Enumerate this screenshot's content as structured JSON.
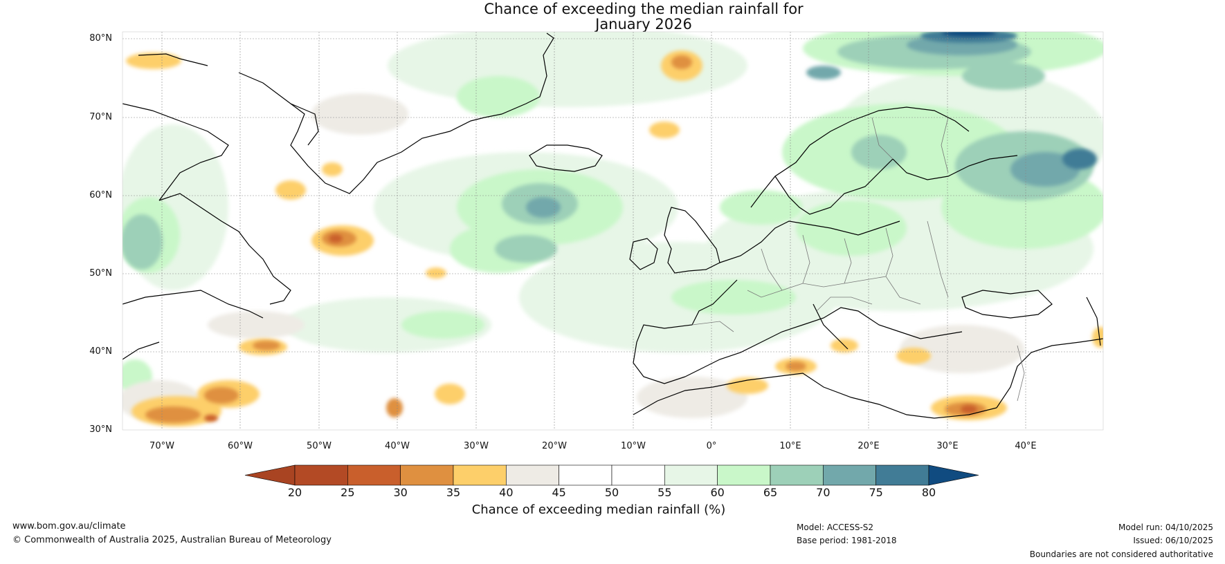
{
  "title": {
    "line1": "Chance of exceeding the median rainfall for",
    "line2": "January 2026"
  },
  "axes": {
    "lat_labels": [
      "80°N",
      "70°N",
      "60°N",
      "50°N",
      "40°N",
      "30°N"
    ],
    "lon_labels": [
      "70°W",
      "60°W",
      "50°W",
      "40°W",
      "30°W",
      "20°W",
      "10°W",
      "0°",
      "10°E",
      "20°E",
      "30°E",
      "40°E"
    ]
  },
  "colorbar": {
    "ticks": [
      "20",
      "25",
      "30",
      "35",
      "40",
      "45",
      "50",
      "55",
      "60",
      "65",
      "70",
      "75",
      "80"
    ],
    "colors": [
      "#a94422",
      "#b34a25",
      "#c95f2c",
      "#df9040",
      "#fdcf6a",
      "#eeebe5",
      "#ffffff",
      "#ffffff",
      "#e7f6e7",
      "#c9f7c9",
      "#9dd0b8",
      "#72a8ab",
      "#417c96",
      "#104b80"
    ],
    "label": "Chance of exceeding median rainfall (%)"
  },
  "footer": {
    "url": "www.bom.gov.au/climate",
    "copyright": "© Commonwealth of Australia 2025, Australian Bureau of Meteorology",
    "model": "Model: ACCESS-S2",
    "base_period": "Base period: 1981-2018",
    "model_run": "Model run: 04/10/2025",
    "issued": "Issued: 06/10/2025",
    "disclaimer": "Boundaries are not considered authoritative"
  }
}
